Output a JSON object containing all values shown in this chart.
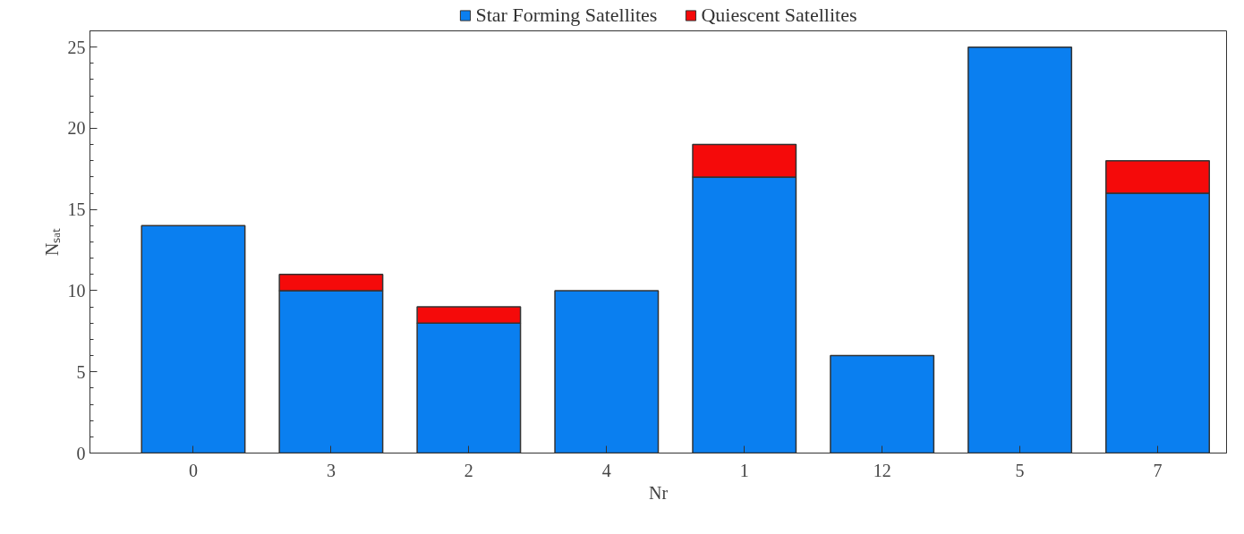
{
  "chart_data": {
    "type": "bar",
    "stacked": true,
    "xlabel": "Nr",
    "ylabel": "Nₛₐₜ",
    "categories": [
      "0",
      "3",
      "2",
      "4",
      "1",
      "12",
      "5",
      "7"
    ],
    "series": [
      {
        "name": "Star Forming Satellites",
        "color": "#0a7ff0",
        "values": [
          14,
          10,
          8,
          10,
          17,
          6,
          25,
          16
        ]
      },
      {
        "name": "Quiescent Satellites",
        "color": "#f50a0a",
        "values": [
          0,
          1,
          1,
          0,
          2,
          0,
          0,
          2
        ]
      }
    ],
    "ylim": [
      0,
      26
    ],
    "yticks": [
      0,
      5,
      10,
      15,
      20,
      25
    ],
    "grid": false,
    "legend": "top"
  }
}
